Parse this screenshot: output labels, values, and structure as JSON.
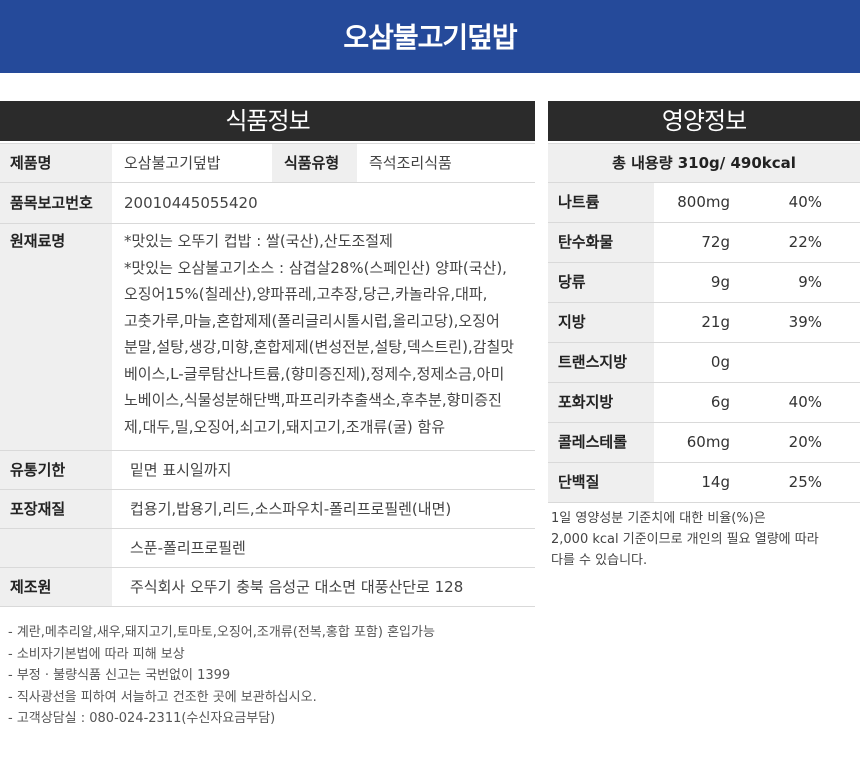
{
  "banner": {
    "title": "오삼불고기덮밥"
  },
  "food_info": {
    "heading": "식품정보",
    "product_name_label": "제품명",
    "product_name": "오삼불고기덮밥",
    "food_type_label": "식품유형",
    "food_type": "즉석조리식품",
    "report_no_label": "품목보고번호",
    "report_no": "20010445055420",
    "ingredients_label": "원재료명",
    "ingredients_lines": [
      "*맛있는 오뚜기 컵밥 : 쌀(국산),산도조절제",
      "*맛있는 오삼불고기소스 : 삼겹살28%(스페인산) 양파(국산),",
      "오징어15%(칠레산),양파퓨레,고추장,당근,카놀라유,대파,",
      "고춧가루,마늘,혼합제제(폴리글리시톨시럽,올리고당),오징어",
      "분말,설탕,생강,미향,혼합제제(변성전분,설탕,덱스트린),감칠맛",
      "베이스,L-글루탐산나트륨,(향미증진제),정제수,정제소금,아미",
      "노베이스,식물성분해단백,파프리카추출색소,후추분,향미증진",
      "제,대두,밀,오징어,쇠고기,돼지고기,조개류(굴) 함유"
    ],
    "expiry_label": "유통기한",
    "expiry": "밑면 표시일까지",
    "packaging_label": "포장재질",
    "packaging_1": "컵용기,밥용기,리드,소스파우치-폴리프로필렌(내면)",
    "packaging_2": "스푼-폴리프로필렌",
    "manufacturer_label": "제조원",
    "manufacturer": "주식회사 오뚜기 충북 음성군 대소면 대풍산단로 128"
  },
  "nutrition": {
    "heading": "영양정보",
    "total": "총 내용량  310g/ 490kcal",
    "rows": [
      {
        "name": "나트륨",
        "amount": "800mg",
        "percent": "40%"
      },
      {
        "name": "탄수화물",
        "amount": "72g",
        "percent": "22%"
      },
      {
        "name": "당류",
        "amount": "9g",
        "percent": "9%"
      },
      {
        "name": "지방",
        "amount": "21g",
        "percent": "39%"
      },
      {
        "name": "트랜스지방",
        "amount": "0g",
        "percent": ""
      },
      {
        "name": "포화지방",
        "amount": "6g",
        "percent": "40%"
      },
      {
        "name": "콜레스테롤",
        "amount": "60mg",
        "percent": "20%"
      },
      {
        "name": "단백질",
        "amount": "14g",
        "percent": "25%"
      }
    ],
    "note_lines": [
      "1일 영양성분 기준치에 대한 비율(%)은",
      "2,000 kcal 기준이므로 개인의 필요 열량에 따라",
      "다를 수 있습니다."
    ]
  },
  "footer_notes": [
    "- 계란,메추리알,새우,돼지고기,토마토,오징어,조개류(전복,홍합 포함) 혼입가능",
    "- 소비자기본법에 따라 피해 보상",
    "- 부정 · 불량식품 신고는 국번없이 1399",
    "- 직사광선을 피하여 서늘하고 건조한 곳에 보관하십시오.",
    "- 고객상담실 : 080-024-2311(수신자요금부담)"
  ]
}
